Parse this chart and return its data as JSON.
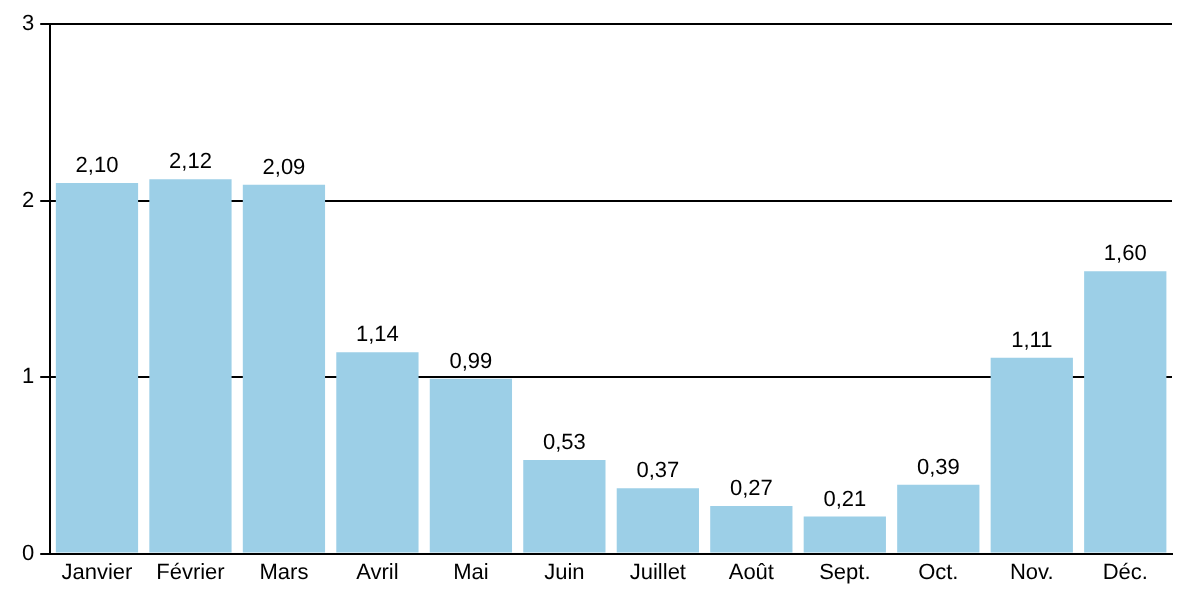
{
  "chart_data": {
    "type": "bar",
    "categories": [
      "Janvier",
      "Février",
      "Mars",
      "Avril",
      "Mai",
      "Juin",
      "Juillet",
      "Août",
      "Sept.",
      "Oct.",
      "Nov.",
      "Déc."
    ],
    "values": [
      2.1,
      2.12,
      2.09,
      1.14,
      0.99,
      0.53,
      0.37,
      0.27,
      0.21,
      0.39,
      1.11,
      1.6
    ],
    "value_labels": [
      "2,10",
      "2,12",
      "2,09",
      "1,14",
      "0,99",
      "0,53",
      "0,37",
      "0,27",
      "0,21",
      "0,39",
      "1,11",
      "1,60"
    ],
    "color": "#9ccfe7",
    "ylim": [
      0,
      3
    ],
    "yticks": [
      0,
      1,
      2,
      3
    ],
    "grid": "y",
    "legend": false
  }
}
